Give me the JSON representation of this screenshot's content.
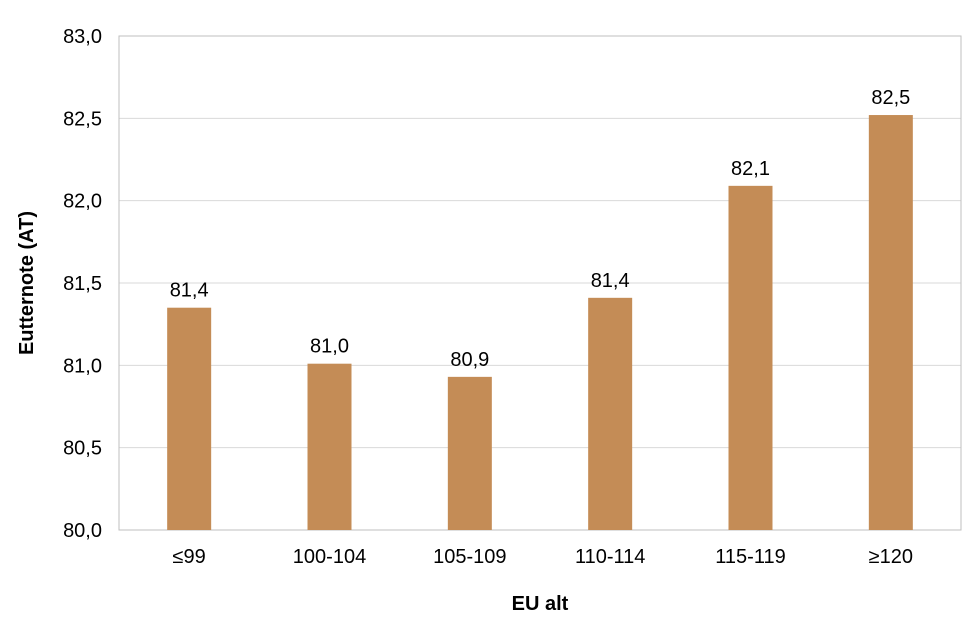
{
  "chart_data": {
    "type": "bar",
    "categories": [
      "≤99",
      "100-104",
      "105-109",
      "110-114",
      "115-119",
      "≥120"
    ],
    "values": [
      81.35,
      81.01,
      80.93,
      81.41,
      82.09,
      82.52
    ],
    "data_labels": [
      "81,4",
      "81,0",
      "80,9",
      "81,4",
      "82,1",
      "82,5"
    ],
    "y_ticks": [
      80.0,
      80.5,
      81.0,
      81.5,
      82.0,
      82.5,
      83.0
    ],
    "y_tick_labels": [
      "80,0",
      "80,5",
      "81,0",
      "81,5",
      "82,0",
      "82,5",
      "83,0"
    ],
    "ylim": [
      80.0,
      83.0
    ],
    "xlabel": "EU alt",
    "ylabel": "Eutternote (AT)",
    "title": "",
    "grid": "horizontal",
    "legend": "none",
    "colors": {
      "bar": "#c48c56",
      "grid": "#d9d9d9",
      "frame": "#bfbfbf",
      "text": "#000000"
    }
  }
}
